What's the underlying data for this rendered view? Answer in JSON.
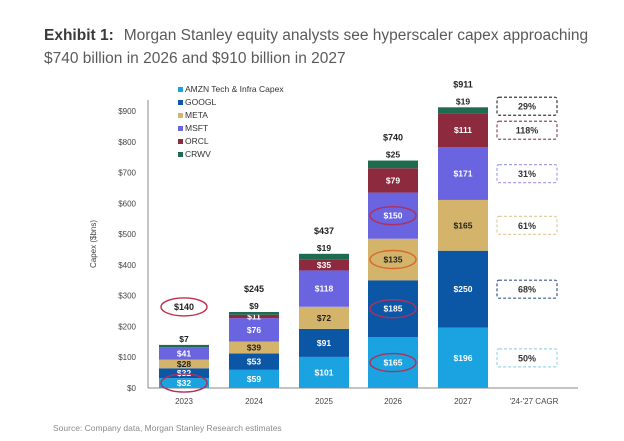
{
  "header": {
    "exhibit_label": "Exhibit 1:",
    "title": "Morgan Stanley equity analysts see hyperscaler capex approaching $740 billion in 2026 and $910 billion in 2027"
  },
  "footer": {
    "source": "Source: Company data, Morgan Stanley Research estimates"
  },
  "chart_data": {
    "type": "bar",
    "stacked": true,
    "title": "Morgan Stanley equity analysts see hyperscaler capex approaching $740 billion in 2026 and $910 billion in 2027",
    "xlabel": "",
    "ylabel": "Capex ($bns)",
    "ylim": [
      0,
      900
    ],
    "yticks": [
      0,
      100,
      200,
      300,
      400,
      500,
      600,
      700,
      800,
      900
    ],
    "ytick_labels": [
      "$0",
      "$100",
      "$200",
      "$300",
      "$400",
      "$500",
      "$600",
      "$700",
      "$800",
      "$900"
    ],
    "categories": [
      "2023",
      "2024",
      "2025",
      "2026",
      "2027"
    ],
    "extra_category_label": "'24-'27 CAGR",
    "grid": false,
    "legend_position": "top-left",
    "series": [
      {
        "name": "AMZN Tech & Infra Capex",
        "color": "#1aa3e0",
        "label_color": "#ffffff",
        "values": [
          32,
          59,
          101,
          165,
          196
        ],
        "labels": [
          "$32",
          "$59",
          "$101",
          "$165",
          "$196"
        ],
        "cagr": "50%"
      },
      {
        "name": "GOOGL",
        "color": "#0c56a6",
        "label_color": "#ffffff",
        "values": [
          32,
          53,
          91,
          185,
          250
        ],
        "labels": [
          "$32",
          "$53",
          "$91",
          "$185",
          "$250"
        ],
        "cagr": "68%"
      },
      {
        "name": "META",
        "color": "#d4b46a",
        "label_color": "#222222",
        "values": [
          28,
          39,
          72,
          135,
          165
        ],
        "labels": [
          "$28",
          "$39",
          "$72",
          "$135",
          "$165"
        ],
        "cagr": "61%"
      },
      {
        "name": "MSFT",
        "color": "#6a64e0",
        "label_color": "#ffffff",
        "values": [
          41,
          76,
          118,
          150,
          171
        ],
        "labels": [
          "$41",
          "$76",
          "$118",
          "$150",
          "$171"
        ],
        "cagr": "31%"
      },
      {
        "name": "ORCL",
        "color": "#8e2a3e",
        "label_color": "#ffffff",
        "values": [
          0,
          11,
          35,
          79,
          111
        ],
        "labels": [
          "",
          "$11",
          "$35",
          "$79",
          "$111"
        ],
        "cagr": "118%"
      },
      {
        "name": "CRWV",
        "color": "#1e6b50",
        "label_color": "#222222",
        "values": [
          7,
          9,
          19,
          25,
          19
        ],
        "labels": [
          "$7",
          "$9",
          "$19",
          "$25",
          "$19"
        ],
        "cagr": "29%"
      }
    ],
    "totals": [
      "$140",
      "$245",
      "$437",
      "$740",
      "$911"
    ],
    "annotations": {
      "circled_totals": [
        "2023"
      ],
      "circled_segments": [
        {
          "year": "2023",
          "series": "AMZN Tech & Infra Capex"
        },
        {
          "year": "2026",
          "series": "AMZN Tech & Infra Capex"
        },
        {
          "year": "2026",
          "series": "GOOGL"
        },
        {
          "year": "2026",
          "series": "META"
        },
        {
          "year": "2026",
          "series": "MSFT"
        }
      ]
    }
  }
}
